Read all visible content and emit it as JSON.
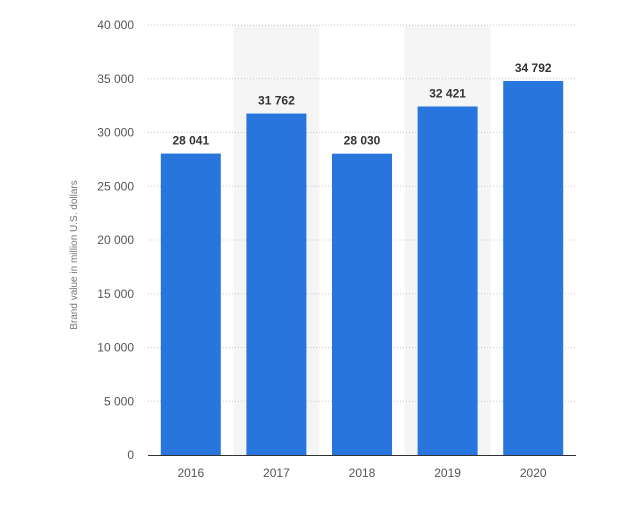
{
  "chart_data": {
    "type": "bar",
    "categories": [
      "2016",
      "2017",
      "2018",
      "2019",
      "2020"
    ],
    "values": [
      28041,
      31762,
      28030,
      32421,
      34792
    ],
    "value_labels": [
      "28 041",
      "31 762",
      "28 030",
      "32 421",
      "34 792"
    ],
    "ylabel": "Brand value in million U.S. dollars",
    "ylim": [
      0,
      40000
    ],
    "y_ticks": [
      0,
      5000,
      10000,
      15000,
      20000,
      25000,
      30000,
      35000,
      40000
    ],
    "y_tick_labels": [
      "0",
      "5 000",
      "10 000",
      "15 000",
      "20 000",
      "25 000",
      "30 000",
      "35 000",
      "40 000"
    ],
    "grid": true,
    "legend": false,
    "colors": {
      "bar": "#2876dd",
      "band": "#f5f5f5"
    }
  }
}
